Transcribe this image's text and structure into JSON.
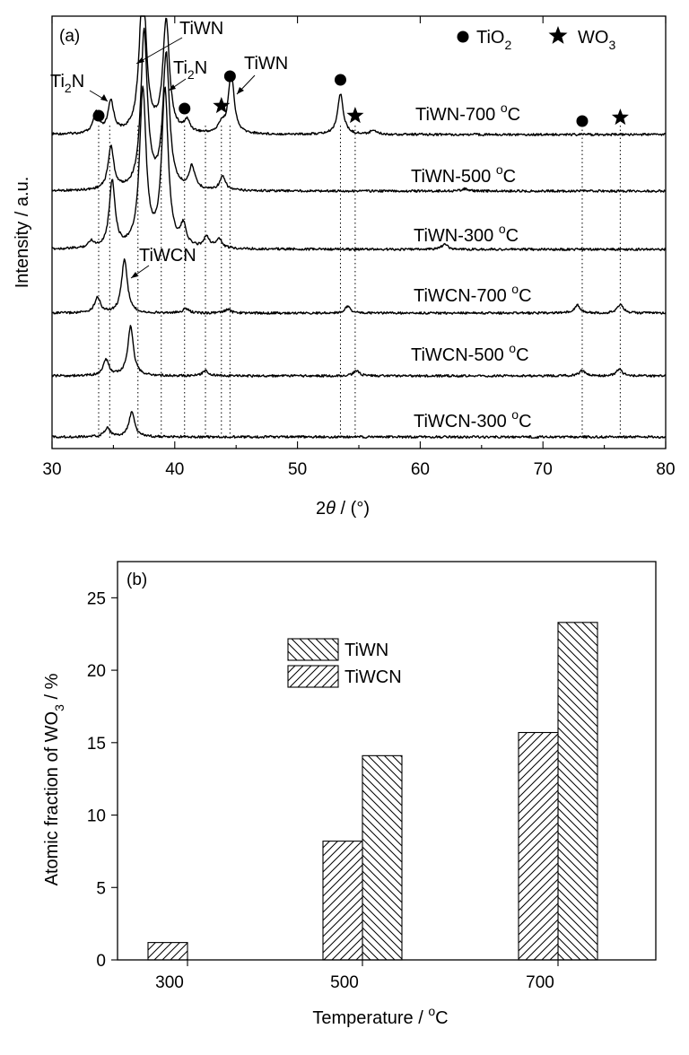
{
  "figure": {
    "panel_a": {
      "label": "(a)",
      "xlabel_symbol": "2",
      "xlabel_theta": "θ",
      "xlabel_rest": " / (°)",
      "ylabel": "Intensity / a.u.",
      "legend": {
        "tio2_main": "TiO",
        "tio2_sub": "2",
        "wo3_main": "WO",
        "wo3_sub": "3"
      },
      "annotations": {
        "ti2n_left_main": "Ti",
        "ti2n_left_sub": "2",
        "ti2n_left_end": "N",
        "tiwn_top": "TiWN",
        "ti2n_mid_main": "Ti",
        "ti2n_mid_sub": "2",
        "ti2n_mid_end": "N",
        "tiwn_right": "TiWN",
        "tiwcn": "TiWCN"
      },
      "series_labels": [
        {
          "main": "TiWN-700 ",
          "deg": "o",
          "unit": "C"
        },
        {
          "main": "TiWN-500 ",
          "deg": "o",
          "unit": "C"
        },
        {
          "main": "TiWN-300 ",
          "deg": "o",
          "unit": "C"
        },
        {
          "main": "TiWCN-700 ",
          "deg": "o",
          "unit": "C"
        },
        {
          "main": "TiWCN-500 ",
          "deg": "o",
          "unit": "C"
        },
        {
          "main": "TiWCN-300 ",
          "deg": "o",
          "unit": "C"
        }
      ]
    },
    "panel_b": {
      "label": "(b)",
      "ylabel_main": "Atomic fraction of WO",
      "ylabel_sub": "3",
      "ylabel_end": " / %",
      "xlabel_main": "Temperature / ",
      "xlabel_deg": "o",
      "xlabel_end": "C",
      "legend": [
        "TiWN",
        "TiWCN"
      ]
    }
  },
  "chart_data": [
    {
      "type": "line",
      "panel": "(a)",
      "xlabel": "2θ / (°)",
      "ylabel": "Intensity / a.u.",
      "xlim": [
        30,
        80
      ],
      "xticks": [
        30,
        40,
        50,
        60,
        70,
        80
      ],
      "grid": false,
      "legend": [
        "TiO2",
        "WO3"
      ],
      "legend_position": "top-right",
      "reference_lines_2theta": [
        33.8,
        34.7,
        37.0,
        38.9,
        40.8,
        42.5,
        43.8,
        44.5,
        53.5,
        54.7,
        73.2,
        76.3
      ],
      "markers": {
        "TiO2": [
          33.8,
          40.8,
          44.5,
          53.5,
          73.2
        ],
        "WO3": [
          43.8,
          54.7,
          76.3
        ]
      },
      "series": [
        {
          "name": "TiWN-700 °C",
          "peaks": [
            {
              "x": 33.6,
              "h": 0.45
            },
            {
              "x": 34.8,
              "h": 0.7
            },
            {
              "x": 37.4,
              "h": 3.5
            },
            {
              "x": 39.3,
              "h": 2.5
            },
            {
              "x": 41.0,
              "h": 0.25
            },
            {
              "x": 43.8,
              "h": 0.2
            },
            {
              "x": 44.6,
              "h": 1.35
            },
            {
              "x": 53.5,
              "h": 0.9
            },
            {
              "x": 56.2,
              "h": 0.1
            }
          ]
        },
        {
          "name": "TiWN-500 °C",
          "peaks": [
            {
              "x": 34.8,
              "h": 0.95
            },
            {
              "x": 37.5,
              "h": 3.5
            },
            {
              "x": 39.3,
              "h": 3.0
            },
            {
              "x": 41.4,
              "h": 0.5
            },
            {
              "x": 43.9,
              "h": 0.3
            },
            {
              "x": 63.6,
              "h": 0.05
            }
          ]
        },
        {
          "name": "TiWN-300 °C",
          "peaks": [
            {
              "x": 33.2,
              "h": 0.15
            },
            {
              "x": 34.9,
              "h": 1.5
            },
            {
              "x": 37.4,
              "h": 3.5
            },
            {
              "x": 39.2,
              "h": 3.5
            },
            {
              "x": 40.7,
              "h": 0.45
            },
            {
              "x": 42.6,
              "h": 0.25
            },
            {
              "x": 43.6,
              "h": 0.2
            },
            {
              "x": 62.0,
              "h": 0.12
            }
          ]
        },
        {
          "name": "TiWCN-700 °C",
          "peaks": [
            {
              "x": 33.7,
              "h": 0.35
            },
            {
              "x": 35.9,
              "h": 1.2
            },
            {
              "x": 40.9,
              "h": 0.1
            },
            {
              "x": 44.3,
              "h": 0.08
            },
            {
              "x": 54.1,
              "h": 0.15
            },
            {
              "x": 72.8,
              "h": 0.18
            },
            {
              "x": 76.3,
              "h": 0.2
            }
          ]
        },
        {
          "name": "TiWCN-500 °C",
          "peaks": [
            {
              "x": 34.4,
              "h": 0.35
            },
            {
              "x": 36.4,
              "h": 1.1
            },
            {
              "x": 42.5,
              "h": 0.12
            },
            {
              "x": 54.8,
              "h": 0.12
            },
            {
              "x": 73.2,
              "h": 0.12
            },
            {
              "x": 76.2,
              "h": 0.15
            }
          ]
        },
        {
          "name": "TiWCN-300 °C",
          "peaks": [
            {
              "x": 34.5,
              "h": 0.2
            },
            {
              "x": 36.5,
              "h": 0.55
            }
          ]
        }
      ]
    },
    {
      "type": "bar",
      "panel": "(b)",
      "xlabel": "Temperature / °C",
      "ylabel": "Atomic fraction of WO3 / %",
      "categories": [
        "300",
        "500",
        "700"
      ],
      "ylim": [
        0,
        27.5
      ],
      "yticks": [
        0,
        5,
        10,
        15,
        20,
        25
      ],
      "grid": false,
      "legend_position": "top-center",
      "series": [
        {
          "name": "TiWN",
          "values": [
            0,
            14.1,
            23.3
          ]
        },
        {
          "name": "TiWCN",
          "values": [
            1.2,
            8.2,
            15.7
          ]
        }
      ]
    }
  ]
}
